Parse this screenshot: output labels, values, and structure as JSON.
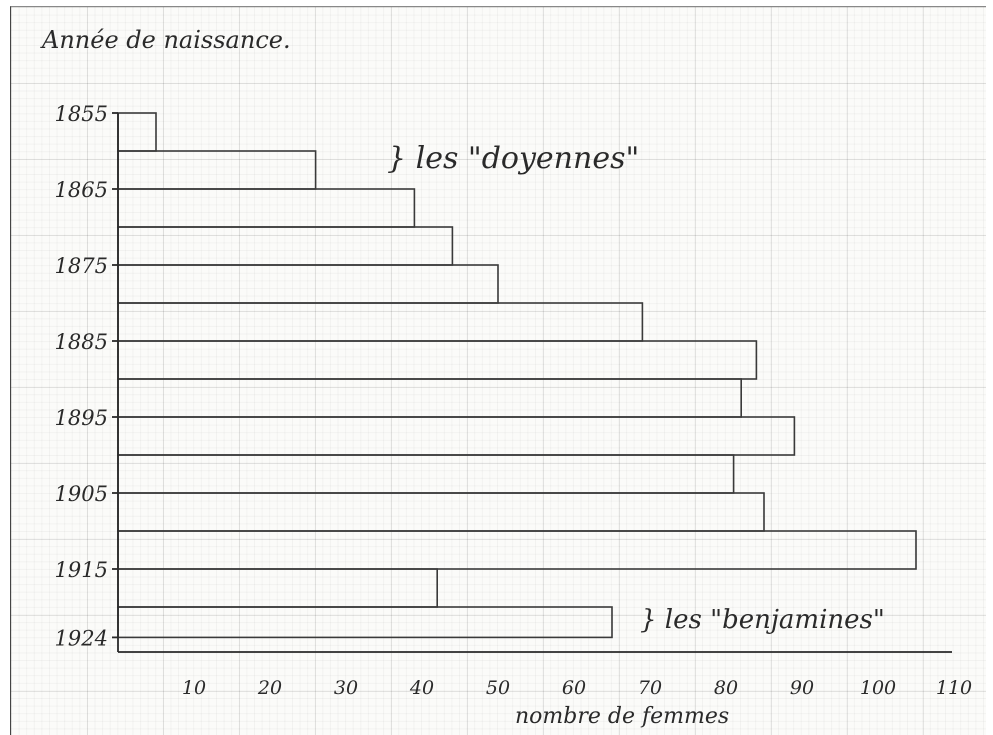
{
  "chart_data": {
    "type": "bar",
    "orientation": "horizontal",
    "title": "Année de naissance.",
    "xlabel": "nombre de femmes",
    "ylabel": "Année de naissance.",
    "xlim": [
      0,
      110
    ],
    "x_ticks": [
      "10",
      "20",
      "30",
      "40",
      "50",
      "60",
      "70",
      "80",
      "90",
      "100",
      "110"
    ],
    "y_ticks": [
      "1855",
      "1865",
      "1875",
      "1885",
      "1895",
      "1905",
      "1915",
      "1924"
    ],
    "grid": true,
    "bars": [
      {
        "from": 1855,
        "to": 1860,
        "value": 5
      },
      {
        "from": 1860,
        "to": 1865,
        "value": 26
      },
      {
        "from": 1865,
        "to": 1870,
        "value": 39
      },
      {
        "from": 1870,
        "to": 1875,
        "value": 44
      },
      {
        "from": 1875,
        "to": 1880,
        "value": 50
      },
      {
        "from": 1880,
        "to": 1885,
        "value": 69
      },
      {
        "from": 1885,
        "to": 1890,
        "value": 84
      },
      {
        "from": 1890,
        "to": 1895,
        "value": 82
      },
      {
        "from": 1895,
        "to": 1900,
        "value": 89
      },
      {
        "from": 1900,
        "to": 1905,
        "value": 81
      },
      {
        "from": 1905,
        "to": 1910,
        "value": 85
      },
      {
        "from": 1910,
        "to": 1915,
        "value": 105
      },
      {
        "from": 1915,
        "to": 1920,
        "value": 42
      },
      {
        "from": 1920,
        "to": 1924,
        "value": 65
      }
    ],
    "annotations": [
      {
        "text": "} les \"doyennes\"",
        "target": "1855–1865"
      },
      {
        "text": "} les \"benjamines\"",
        "target": "1920–1924"
      }
    ]
  }
}
